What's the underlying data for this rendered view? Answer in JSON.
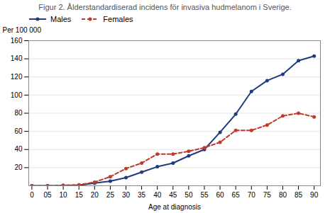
{
  "chart_data": {
    "type": "line",
    "title": "Figur 2. Ålderstandardiserad incidens för invasiva hudmelanom i Sverige.",
    "xlabel": "Age at diagnosis",
    "ylabel": "Per 100 000",
    "x": [
      0,
      5,
      10,
      15,
      20,
      25,
      30,
      35,
      40,
      45,
      50,
      55,
      60,
      65,
      70,
      75,
      80,
      85,
      90
    ],
    "series": [
      {
        "name": "Males",
        "color": "#1F3D7A",
        "marker": "circle",
        "line_style": "solid",
        "values": [
          0,
          0,
          0,
          0.5,
          3,
          5,
          9,
          15,
          21,
          25,
          33,
          40,
          59,
          79,
          104,
          116,
          123,
          138,
          143
        ]
      },
      {
        "name": "Females",
        "color": "#C0392B",
        "marker": "circle",
        "line_style": "dashed",
        "values": [
          0,
          0,
          0.5,
          1,
          4,
          10,
          19,
          25,
          35,
          35,
          38,
          42,
          48,
          61,
          61,
          67,
          77,
          80,
          76
        ]
      }
    ],
    "xlim": [
      -1,
      92
    ],
    "xticks": [
      0,
      {
        "value": 5,
        "label": "05"
      },
      10,
      15,
      20,
      25,
      30,
      35,
      40,
      45,
      50,
      55,
      60,
      65,
      70,
      75,
      80,
      85,
      90
    ],
    "ylim": [
      0,
      160
    ],
    "yticks": [
      20,
      40,
      60,
      80,
      100,
      120,
      140,
      160
    ],
    "grid": true,
    "legend": "upper left"
  }
}
